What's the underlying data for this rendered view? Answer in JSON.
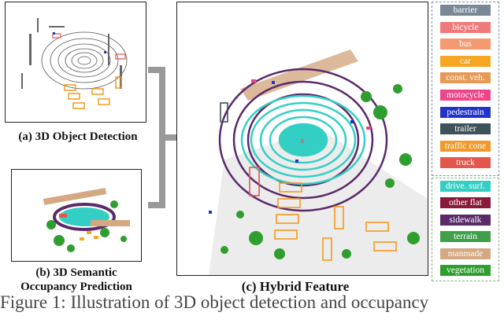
{
  "captions": {
    "a": "(a) 3D Object Detection",
    "b_line1": "(b) 3D Semantic",
    "b_line2": "Occupancy Prediction",
    "c": "(c) Hybrid Feature"
  },
  "legend_objects": [
    {
      "label": "barrier",
      "color": "#7a8796"
    },
    {
      "label": "bicycle",
      "color": "#f07a7a"
    },
    {
      "label": "bus",
      "color": "#f39a72"
    },
    {
      "label": "car",
      "color": "#f6a623"
    },
    {
      "label": "const. veh.",
      "color": "#e79a55"
    },
    {
      "label": "motocycle",
      "color": "#ee4488"
    },
    {
      "label": "pedestrain",
      "color": "#2233cc"
    },
    {
      "label": "trailer",
      "color": "#3d5359"
    },
    {
      "label": "traffic cone",
      "color": "#f19a2a"
    },
    {
      "label": "truck",
      "color": "#e4554c"
    }
  ],
  "legend_scene": [
    {
      "label": "drive. surf.",
      "color": "#34cfc4"
    },
    {
      "label": "other flat",
      "color": "#8b1a3a"
    },
    {
      "label": "sidewalk",
      "color": "#5a2a6a"
    },
    {
      "label": "terrain",
      "color": "#40a04a"
    },
    {
      "label": "manmade",
      "color": "#d4a883"
    },
    {
      "label": "vegetation",
      "color": "#2e9e2e"
    }
  ],
  "figure_text": "Figure 1: Illustration of 3D object detection and occupancy"
}
